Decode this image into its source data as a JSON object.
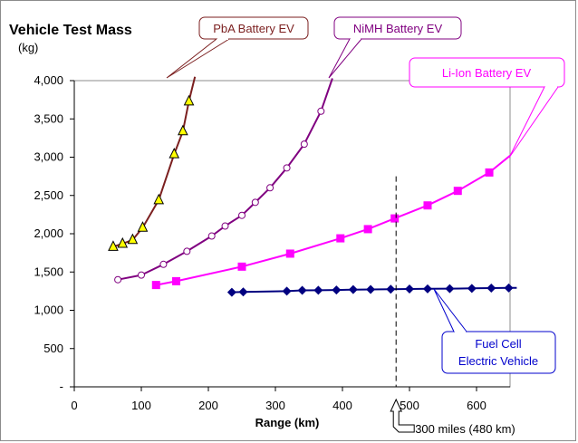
{
  "chart_data": {
    "type": "line",
    "title": "Vehicle Test Mass",
    "ylabel": "(kg)",
    "xlabel": "Range (km)",
    "xlim": [
      0,
      650
    ],
    "ylim": [
      0,
      4000
    ],
    "x_ticks": [
      0,
      100,
      200,
      300,
      400,
      500,
      600
    ],
    "x_tick_labels": [
      "0",
      "100",
      "200",
      "300",
      "400",
      "500",
      "600"
    ],
    "y_ticks": [
      0,
      500,
      1000,
      1500,
      2000,
      2500,
      3000,
      3500,
      4000
    ],
    "y_tick_labels": [
      "-",
      "500",
      "1,000",
      "1,500",
      "2,000",
      "2,500",
      "3,000",
      "3,500",
      "4,000"
    ],
    "grid": false,
    "series": [
      {
        "name": "PbA Battery EV",
        "color": "#7b1f1f",
        "marker": "triangle",
        "marker_fill": "#ffff00",
        "x": [
          58,
          72,
          87,
          102,
          126,
          149,
          162,
          171
        ],
        "y": [
          1830,
          1870,
          1920,
          2080,
          2440,
          3040,
          3340,
          3730
        ],
        "curve_x": [
          58,
          72,
          87,
          102,
          126,
          149,
          162,
          171,
          180
        ],
        "curve_y": [
          1830,
          1870,
          1920,
          2080,
          2440,
          3040,
          3340,
          3730,
          4050
        ]
      },
      {
        "name": "NiMH Battery EV",
        "color": "#800080",
        "marker": "circle-open",
        "marker_fill": "#ffffff",
        "x": [
          65,
          100,
          133,
          168,
          205,
          225,
          250,
          270,
          292,
          317,
          343,
          368
        ],
        "y": [
          1400,
          1460,
          1600,
          1770,
          1970,
          2100,
          2240,
          2410,
          2600,
          2860,
          3170,
          3600
        ],
        "curve_x": [
          65,
          100,
          133,
          168,
          205,
          225,
          250,
          270,
          292,
          317,
          343,
          368,
          385
        ],
        "curve_y": [
          1400,
          1460,
          1600,
          1770,
          1970,
          2100,
          2240,
          2410,
          2600,
          2860,
          3170,
          3600,
          4030
        ]
      },
      {
        "name": "Li-Ion Battery EV",
        "color": "#ff00ff",
        "marker": "square",
        "marker_fill": "#ff00ff",
        "x": [
          122,
          152,
          250,
          322,
          397,
          438,
          478,
          527,
          572,
          619
        ],
        "y": [
          1330,
          1380,
          1570,
          1740,
          1940,
          2060,
          2200,
          2370,
          2560,
          2800
        ],
        "curve_x": [
          122,
          152,
          250,
          322,
          397,
          438,
          478,
          527,
          572,
          619,
          650
        ],
        "curve_y": [
          1330,
          1380,
          1570,
          1740,
          1940,
          2060,
          2200,
          2370,
          2560,
          2800,
          3020
        ]
      },
      {
        "name": "Fuel Cell Electric Vehicle",
        "color": "#000080",
        "marker": "diamond",
        "marker_fill": "#000080",
        "x": [
          235,
          252,
          317,
          340,
          364,
          391,
          416,
          442,
          472,
          500,
          527,
          560,
          593,
          622,
          648
        ],
        "y": [
          1235,
          1240,
          1250,
          1260,
          1262,
          1265,
          1270,
          1272,
          1275,
          1278,
          1280,
          1283,
          1286,
          1290,
          1292
        ],
        "curve_x": [
          235,
          252,
          317,
          340,
          364,
          391,
          416,
          442,
          472,
          500,
          527,
          560,
          593,
          622,
          648,
          660
        ],
        "curve_y": [
          1235,
          1240,
          1250,
          1260,
          1262,
          1265,
          1270,
          1272,
          1275,
          1278,
          1280,
          1283,
          1286,
          1290,
          1292,
          1294
        ]
      }
    ],
    "reference_line": {
      "x": 480,
      "y_top": 2750,
      "style": "dashed",
      "color": "#000000"
    },
    "annotations": [
      {
        "id": "pba",
        "text": [
          "PbA Battery EV"
        ],
        "color": "#7b1f1f"
      },
      {
        "id": "nimh",
        "text": [
          "NiMH Battery EV"
        ],
        "color": "#800080"
      },
      {
        "id": "liion",
        "text": [
          "Li-Ion Battery EV"
        ],
        "color": "#ff00ff"
      },
      {
        "id": "fcev",
        "text": [
          "Fuel Cell",
          "Electric Vehicle"
        ],
        "color": "#0000cc"
      },
      {
        "id": "miles",
        "text": [
          "300 miles (480 km)"
        ],
        "color": "#000000"
      }
    ]
  }
}
